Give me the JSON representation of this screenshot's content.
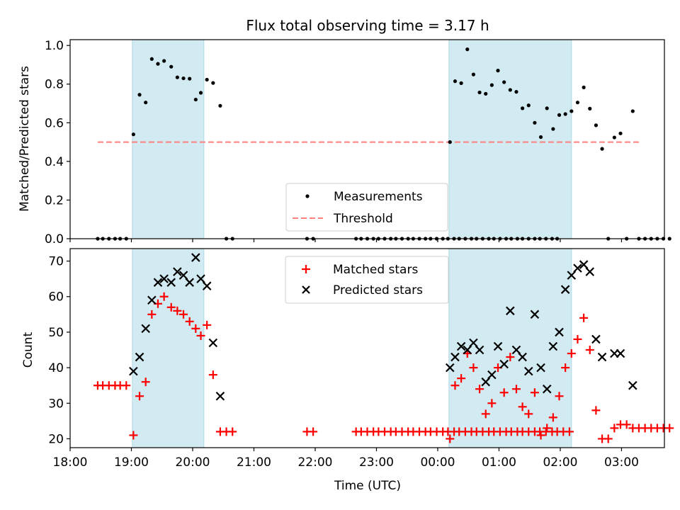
{
  "figure": {
    "title": "Flux total observing time = 3.17 h",
    "xlabel": "Time (UTC)"
  },
  "colors": {
    "shade": "#add8e6",
    "threshold": "#ff7f7f",
    "matched": "#ff0000",
    "predicted": "#000000",
    "measurement": "#000000"
  },
  "chart_data": [
    {
      "type": "scatter",
      "panel": "top",
      "ylabel": "Matched/Predicted stars",
      "ylim": [
        0,
        1.03
      ],
      "yticks": [
        0.0,
        0.2,
        0.4,
        0.6,
        0.8,
        1.0
      ],
      "ytick_labels": [
        "0.0",
        "0.2",
        "0.4",
        "0.6",
        "0.8",
        "1.0"
      ],
      "legend_position": "lower center",
      "shaded_intervals": [
        [
          "19:01",
          "20:11"
        ],
        [
          "00:11",
          "02:11"
        ]
      ],
      "threshold": {
        "name": "Threshold",
        "y": 0.5,
        "x_range": [
          "18:27",
          "03:17"
        ]
      },
      "series": [
        {
          "name": "Measurements",
          "marker": "dot",
          "points": [
            [
              "18:27",
              0
            ],
            [
              "18:32",
              0
            ],
            [
              "18:38",
              0
            ],
            [
              "18:44",
              0
            ],
            [
              "18:49",
              0
            ],
            [
              "18:55",
              0
            ],
            [
              "19:02",
              0.54
            ],
            [
              "19:08",
              0.745
            ],
            [
              "19:14",
              0.705
            ],
            [
              "19:20",
              0.93
            ],
            [
              "19:26",
              0.905
            ],
            [
              "19:32",
              0.92
            ],
            [
              "19:39",
              0.89
            ],
            [
              "19:45",
              0.835
            ],
            [
              "19:51",
              0.83
            ],
            [
              "19:57",
              0.828
            ],
            [
              "20:03",
              0.72
            ],
            [
              "20:08",
              0.755
            ],
            [
              "20:14",
              0.823
            ],
            [
              "20:20",
              0.806
            ],
            [
              "20:27",
              0.688
            ],
            [
              "20:33",
              0
            ],
            [
              "20:39",
              0
            ],
            [
              "21:52",
              0
            ],
            [
              "21:58",
              0
            ],
            [
              "22:40",
              0
            ],
            [
              "22:45",
              0
            ],
            [
              "22:51",
              0
            ],
            [
              "22:57",
              0
            ],
            [
              "23:02",
              0
            ],
            [
              "23:08",
              0
            ],
            [
              "23:14",
              0
            ],
            [
              "23:19",
              0
            ],
            [
              "23:25",
              0
            ],
            [
              "23:31",
              0
            ],
            [
              "23:36",
              0
            ],
            [
              "23:42",
              0
            ],
            [
              "23:48",
              0
            ],
            [
              "23:53",
              0
            ],
            [
              "23:59",
              0
            ],
            [
              "00:05",
              0
            ],
            [
              "00:10",
              0
            ],
            [
              "00:16",
              0
            ],
            [
              "00:21",
              0
            ],
            [
              "00:27",
              0
            ],
            [
              "00:33",
              0
            ],
            [
              "00:38",
              0
            ],
            [
              "00:44",
              0
            ],
            [
              "00:50",
              0
            ],
            [
              "00:55",
              0
            ],
            [
              "01:01",
              0
            ],
            [
              "01:07",
              0
            ],
            [
              "01:12",
              0
            ],
            [
              "01:18",
              0
            ],
            [
              "01:23",
              0
            ],
            [
              "01:29",
              0
            ],
            [
              "01:35",
              0
            ],
            [
              "01:40",
              0
            ],
            [
              "01:46",
              0
            ],
            [
              "01:52",
              0
            ],
            [
              "01:57",
              0
            ],
            [
              "00:12",
              0.5
            ],
            [
              "00:17",
              0.815
            ],
            [
              "00:23",
              0.805
            ],
            [
              "00:29",
              0.98
            ],
            [
              "00:35",
              0.85
            ],
            [
              "00:41",
              0.757
            ],
            [
              "00:47",
              0.75
            ],
            [
              "00:53",
              0.795
            ],
            [
              "00:59",
              0.87
            ],
            [
              "01:05",
              0.81
            ],
            [
              "01:11",
              0.77
            ],
            [
              "01:17",
              0.76
            ],
            [
              "01:23",
              0.675
            ],
            [
              "01:29",
              0.69
            ],
            [
              "01:35",
              0.6
            ],
            [
              "01:41",
              0.526
            ],
            [
              "01:47",
              0.675
            ],
            [
              "01:53",
              0.568
            ],
            [
              "01:59",
              0.64
            ],
            [
              "02:05",
              0.645
            ],
            [
              "02:11",
              0.66
            ],
            [
              "02:17",
              0.705
            ],
            [
              "02:23",
              0.783
            ],
            [
              "02:29",
              0.673
            ],
            [
              "02:35",
              0.587
            ],
            [
              "02:41",
              0.465
            ],
            [
              "02:47",
              0
            ],
            [
              "02:53",
              0.524
            ],
            [
              "02:59",
              0.545
            ],
            [
              "03:05",
              0
            ],
            [
              "03:11",
              0.66
            ],
            [
              "03:17",
              0
            ],
            [
              "03:23",
              0
            ],
            [
              "03:29",
              0
            ],
            [
              "03:35",
              0
            ],
            [
              "03:41",
              0
            ],
            [
              "03:47",
              0
            ]
          ]
        }
      ]
    },
    {
      "type": "scatter",
      "panel": "bottom",
      "ylabel": "Count",
      "ylim": [
        17.5,
        73.5
      ],
      "yticks": [
        20,
        30,
        40,
        50,
        60,
        70
      ],
      "ytick_labels": [
        "20",
        "30",
        "40",
        "50",
        "60",
        "70"
      ],
      "xlim": [
        "18:00",
        "03:42"
      ],
      "xticks": [
        "18:00",
        "19:00",
        "20:00",
        "21:00",
        "22:00",
        "23:00",
        "00:00",
        "01:00",
        "02:00",
        "03:00"
      ],
      "xtick_labels": [
        "18:00",
        "19:00",
        "20:00",
        "21:00",
        "22:00",
        "23:00",
        "00:00",
        "01:00",
        "02:00",
        "03:00"
      ],
      "legend_position": "upper center",
      "shaded_intervals": [
        [
          "19:01",
          "20:11"
        ],
        [
          "00:11",
          "02:11"
        ]
      ],
      "series": [
        {
          "name": "Matched stars",
          "marker": "plus",
          "points": [
            [
              "18:27",
              35
            ],
            [
              "18:32",
              35
            ],
            [
              "18:38",
              35
            ],
            [
              "18:44",
              35
            ],
            [
              "18:49",
              35
            ],
            [
              "18:55",
              35
            ],
            [
              "19:02",
              21
            ],
            [
              "19:08",
              32
            ],
            [
              "19:14",
              36
            ],
            [
              "19:20",
              55
            ],
            [
              "19:26",
              58
            ],
            [
              "19:32",
              60
            ],
            [
              "19:39",
              57
            ],
            [
              "19:45",
              56
            ],
            [
              "19:51",
              55
            ],
            [
              "19:57",
              53
            ],
            [
              "20:03",
              51
            ],
            [
              "20:08",
              49
            ],
            [
              "20:14",
              52
            ],
            [
              "20:20",
              38
            ],
            [
              "20:27",
              22
            ],
            [
              "20:33",
              22
            ],
            [
              "20:39",
              22
            ],
            [
              "21:52",
              22
            ],
            [
              "21:58",
              22
            ],
            [
              "22:40",
              22
            ],
            [
              "22:45",
              22
            ],
            [
              "22:51",
              22
            ],
            [
              "22:57",
              22
            ],
            [
              "23:02",
              22
            ],
            [
              "23:08",
              22
            ],
            [
              "23:14",
              22
            ],
            [
              "23:19",
              22
            ],
            [
              "23:25",
              22
            ],
            [
              "23:31",
              22
            ],
            [
              "23:36",
              22
            ],
            [
              "23:42",
              22
            ],
            [
              "23:48",
              22
            ],
            [
              "23:53",
              22
            ],
            [
              "23:59",
              22
            ],
            [
              "00:05",
              22
            ],
            [
              "00:10",
              22
            ],
            [
              "00:16",
              22
            ],
            [
              "00:21",
              22
            ],
            [
              "00:27",
              22
            ],
            [
              "00:33",
              22
            ],
            [
              "00:38",
              22
            ],
            [
              "00:44",
              22
            ],
            [
              "00:50",
              22
            ],
            [
              "00:55",
              22
            ],
            [
              "01:01",
              22
            ],
            [
              "01:07",
              22
            ],
            [
              "01:12",
              22
            ],
            [
              "01:18",
              22
            ],
            [
              "01:23",
              22
            ],
            [
              "01:29",
              22
            ],
            [
              "01:35",
              22
            ],
            [
              "01:40",
              22
            ],
            [
              "01:46",
              22
            ],
            [
              "01:52",
              22
            ],
            [
              "01:57",
              22
            ],
            [
              "02:03",
              22
            ],
            [
              "02:09",
              22
            ],
            [
              "00:12",
              20
            ],
            [
              "00:17",
              35
            ],
            [
              "00:23",
              37
            ],
            [
              "00:29",
              44
            ],
            [
              "00:35",
              40
            ],
            [
              "00:41",
              34
            ],
            [
              "00:47",
              27
            ],
            [
              "00:53",
              30
            ],
            [
              "00:59",
              40
            ],
            [
              "01:05",
              33
            ],
            [
              "01:11",
              43
            ],
            [
              "01:17",
              34
            ],
            [
              "01:23",
              29
            ],
            [
              "01:29",
              27
            ],
            [
              "01:35",
              33
            ],
            [
              "01:41",
              21
            ],
            [
              "01:47",
              23
            ],
            [
              "01:53",
              26
            ],
            [
              "01:59",
              32
            ],
            [
              "02:05",
              40
            ],
            [
              "02:11",
              44
            ],
            [
              "02:17",
              48
            ],
            [
              "02:23",
              54
            ],
            [
              "02:29",
              45
            ],
            [
              "02:35",
              28
            ],
            [
              "02:41",
              20
            ],
            [
              "02:47",
              20
            ],
            [
              "02:53",
              23
            ],
            [
              "02:59",
              24
            ],
            [
              "03:05",
              24
            ],
            [
              "03:11",
              23
            ],
            [
              "03:17",
              23
            ],
            [
              "03:23",
              23
            ],
            [
              "03:29",
              23
            ],
            [
              "03:35",
              23
            ],
            [
              "03:41",
              23
            ],
            [
              "03:47",
              23
            ]
          ]
        },
        {
          "name": "Predicted stars",
          "marker": "x",
          "points": [
            [
              "19:02",
              39
            ],
            [
              "19:08",
              43
            ],
            [
              "19:14",
              51
            ],
            [
              "19:20",
              59
            ],
            [
              "19:26",
              64
            ],
            [
              "19:32",
              65
            ],
            [
              "19:39",
              64
            ],
            [
              "19:45",
              67
            ],
            [
              "19:51",
              66
            ],
            [
              "19:57",
              64
            ],
            [
              "20:03",
              71
            ],
            [
              "20:08",
              65
            ],
            [
              "20:14",
              63
            ],
            [
              "20:20",
              47
            ],
            [
              "20:27",
              32
            ],
            [
              "00:12",
              40
            ],
            [
              "00:17",
              43
            ],
            [
              "00:23",
              46
            ],
            [
              "00:29",
              45
            ],
            [
              "00:35",
              47
            ],
            [
              "00:41",
              45
            ],
            [
              "00:47",
              36
            ],
            [
              "00:53",
              38
            ],
            [
              "00:59",
              46
            ],
            [
              "01:05",
              41
            ],
            [
              "01:11",
              56
            ],
            [
              "01:17",
              45
            ],
            [
              "01:23",
              43
            ],
            [
              "01:29",
              39
            ],
            [
              "01:35",
              55
            ],
            [
              "01:41",
              40
            ],
            [
              "01:47",
              34
            ],
            [
              "01:53",
              46
            ],
            [
              "01:59",
              50
            ],
            [
              "02:05",
              62
            ],
            [
              "02:11",
              66
            ],
            [
              "02:17",
              68
            ],
            [
              "02:23",
              69
            ],
            [
              "02:29",
              67
            ],
            [
              "02:35",
              48
            ],
            [
              "02:41",
              43
            ],
            [
              "02:53",
              44
            ],
            [
              "02:59",
              44
            ],
            [
              "03:11",
              35
            ]
          ]
        }
      ]
    }
  ]
}
